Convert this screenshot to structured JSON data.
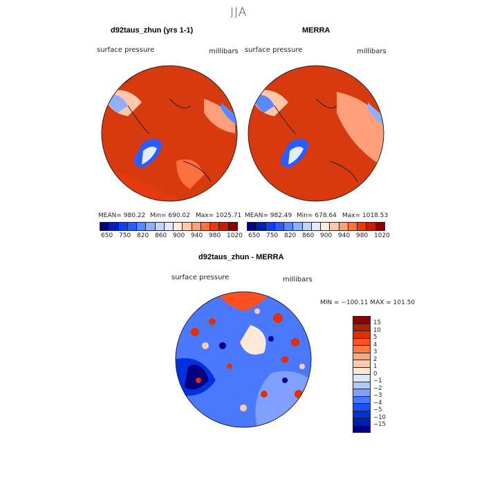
{
  "title": "JJA",
  "panels": [
    {
      "title": "d92taus_zhun (yrs 1-1)",
      "left_label": "surface pressure",
      "right_label": "millibars",
      "mean": "MEAN= 980.22",
      "min": "Min= 690.02",
      "max": "Max= 1025.71"
    },
    {
      "title": "MERRA",
      "left_label": "surface pressure",
      "right_label": "millibars",
      "mean": "MEAN= 982.49",
      "min": "Min= 678.64",
      "max": "Max= 1018.53"
    }
  ],
  "diff_panel": {
    "title": "d92taus_zhun - MERRA",
    "left_label": "surface pressure",
    "right_label": "millibars",
    "minmax": "MIN = −100.11 MAX = 101.50"
  },
  "colorbar_labels": [
    "650",
    "750",
    "820",
    "860",
    "900",
    "940",
    "980",
    "1020"
  ],
  "colorbar_colors": [
    "#000080",
    "#0020b0",
    "#1040f0",
    "#2a5cff",
    "#5a88ff",
    "#90b0ff",
    "#c0d4ff",
    "#e0ecff",
    "#ffeede",
    "#ffc8a8",
    "#ffa07a",
    "#ff7040",
    "#e83a10",
    "#c02000",
    "#8b0000"
  ],
  "diff_colorbar_labels": [
    "15",
    "10",
    "5",
    "4",
    "3",
    "2",
    "1",
    "0",
    "−1",
    "−2",
    "−3",
    "−4",
    "−5",
    "−10",
    "−15"
  ],
  "diff_colorbar_colors": [
    "#8b0000",
    "#b42000",
    "#e03000",
    "#ff5020",
    "#ff7a45",
    "#ffa580",
    "#ffcbb0",
    "#ffe8d8",
    "#d8e8ff",
    "#b0c8ff",
    "#80a0ff",
    "#4a78ff",
    "#1a50ff",
    "#0030e0",
    "#0020b0",
    "#000080"
  ]
}
